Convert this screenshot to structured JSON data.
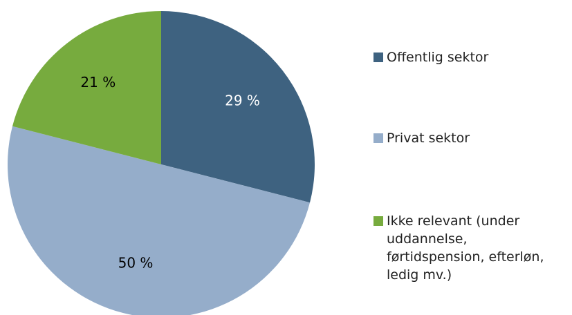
{
  "chart_data": {
    "type": "pie",
    "categories": [
      "Offentlig sektor",
      "Privat sektor",
      "Ikke relevant (under uddannelse, førtidspension, efterløn, ledig mv.)"
    ],
    "values": [
      29,
      50,
      21
    ],
    "value_labels": [
      "29 %",
      "50 %",
      "21 %"
    ],
    "colors": [
      "#3e6280",
      "#95adca",
      "#77ab3e"
    ],
    "label_colors": [
      "#ffffff",
      "#000000",
      "#000000"
    ]
  }
}
